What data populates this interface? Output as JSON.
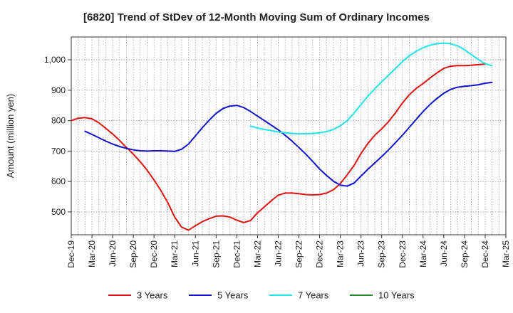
{
  "title": "[6820]  Trend of StDev of 12-Month Moving Sum of Ordinary Incomes",
  "chart_data": {
    "type": "line",
    "title": "[6820]  Trend of StDev of 12-Month Moving Sum of Ordinary Incomes",
    "xlabel": "",
    "ylabel": "Amount (million yen)",
    "ylim": [
      425,
      1075
    ],
    "yticks": [
      500,
      600,
      700,
      800,
      900,
      1000
    ],
    "ytick_labels": [
      "500",
      "600",
      "700",
      "800",
      "900",
      "1,000"
    ],
    "xlim": [
      "2019-12",
      "2025-03"
    ],
    "xtick_labels": [
      "Dec-19",
      "Mar-20",
      "Jun-20",
      "Sep-20",
      "Dec-20",
      "Mar-21",
      "Jun-21",
      "Sep-21",
      "Dec-21",
      "Mar-22",
      "Jun-22",
      "Sep-22",
      "Dec-22",
      "Mar-23",
      "Jun-23",
      "Sep-23",
      "Dec-23",
      "Mar-24",
      "Jun-24",
      "Sep-24",
      "Dec-24",
      "Mar-25"
    ],
    "grid": true,
    "legend_position": "bottom",
    "series": [
      {
        "name": "3 Years",
        "color": "#dd1111",
        "points": [
          [
            "2019-12",
            800
          ],
          [
            "2020-01",
            808
          ],
          [
            "2020-02",
            810
          ],
          [
            "2020-03",
            806
          ],
          [
            "2020-04",
            793
          ],
          [
            "2020-05",
            775
          ],
          [
            "2020-06",
            756
          ],
          [
            "2020-07",
            735
          ],
          [
            "2020-08",
            712
          ],
          [
            "2020-09",
            690
          ],
          [
            "2020-10",
            665
          ],
          [
            "2020-11",
            637
          ],
          [
            "2020-12",
            605
          ],
          [
            "2021-01",
            570
          ],
          [
            "2021-02",
            530
          ],
          [
            "2021-03",
            483
          ],
          [
            "2021-04",
            450
          ],
          [
            "2021-05",
            440
          ],
          [
            "2021-06",
            455
          ],
          [
            "2021-07",
            468
          ],
          [
            "2021-08",
            478
          ],
          [
            "2021-09",
            486
          ],
          [
            "2021-10",
            487
          ],
          [
            "2021-11",
            483
          ],
          [
            "2021-12",
            473
          ],
          [
            "2022-01",
            465
          ],
          [
            "2022-02",
            472
          ],
          [
            "2022-03",
            497
          ],
          [
            "2022-04",
            517
          ],
          [
            "2022-05",
            537
          ],
          [
            "2022-06",
            555
          ],
          [
            "2022-07",
            562
          ],
          [
            "2022-08",
            562
          ],
          [
            "2022-09",
            560
          ],
          [
            "2022-10",
            557
          ],
          [
            "2022-11",
            556
          ],
          [
            "2022-12",
            557
          ],
          [
            "2023-01",
            562
          ],
          [
            "2023-02",
            573
          ],
          [
            "2023-03",
            593
          ],
          [
            "2023-04",
            622
          ],
          [
            "2023-05",
            653
          ],
          [
            "2023-06",
            692
          ],
          [
            "2023-07",
            725
          ],
          [
            "2023-08",
            752
          ],
          [
            "2023-09",
            773
          ],
          [
            "2023-10",
            797
          ],
          [
            "2023-11",
            826
          ],
          [
            "2023-12",
            858
          ],
          [
            "2024-01",
            885
          ],
          [
            "2024-02",
            906
          ],
          [
            "2024-03",
            922
          ],
          [
            "2024-04",
            940
          ],
          [
            "2024-05",
            957
          ],
          [
            "2024-06",
            972
          ],
          [
            "2024-07",
            979
          ],
          [
            "2024-08",
            981
          ],
          [
            "2024-09",
            981
          ],
          [
            "2024-10",
            982
          ],
          [
            "2024-11",
            984
          ],
          [
            "2024-12",
            986
          ]
        ]
      },
      {
        "name": "5 Years",
        "color": "#1111cc",
        "points": [
          [
            "2020-02",
            765
          ],
          [
            "2020-03",
            755
          ],
          [
            "2020-04",
            744
          ],
          [
            "2020-05",
            733
          ],
          [
            "2020-06",
            723
          ],
          [
            "2020-07",
            715
          ],
          [
            "2020-08",
            709
          ],
          [
            "2020-09",
            704
          ],
          [
            "2020-10",
            701
          ],
          [
            "2020-11",
            700
          ],
          [
            "2020-12",
            701
          ],
          [
            "2021-01",
            701
          ],
          [
            "2021-02",
            700
          ],
          [
            "2021-03",
            699
          ],
          [
            "2021-04",
            706
          ],
          [
            "2021-05",
            723
          ],
          [
            "2021-06",
            750
          ],
          [
            "2021-07",
            777
          ],
          [
            "2021-08",
            802
          ],
          [
            "2021-09",
            824
          ],
          [
            "2021-10",
            840
          ],
          [
            "2021-11",
            848
          ],
          [
            "2021-12",
            850
          ],
          [
            "2022-01",
            843
          ],
          [
            "2022-02",
            830
          ],
          [
            "2022-03",
            815
          ],
          [
            "2022-04",
            800
          ],
          [
            "2022-05",
            785
          ],
          [
            "2022-06",
            770
          ],
          [
            "2022-07",
            752
          ],
          [
            "2022-08",
            733
          ],
          [
            "2022-09",
            712
          ],
          [
            "2022-10",
            690
          ],
          [
            "2022-11",
            666
          ],
          [
            "2022-12",
            641
          ],
          [
            "2023-01",
            620
          ],
          [
            "2023-02",
            601
          ],
          [
            "2023-03",
            588
          ],
          [
            "2023-04",
            585
          ],
          [
            "2023-05",
            595
          ],
          [
            "2023-06",
            618
          ],
          [
            "2023-07",
            640
          ],
          [
            "2023-08",
            661
          ],
          [
            "2023-09",
            682
          ],
          [
            "2023-10",
            704
          ],
          [
            "2023-11",
            728
          ],
          [
            "2023-12",
            752
          ],
          [
            "2024-01",
            778
          ],
          [
            "2024-02",
            804
          ],
          [
            "2024-03",
            830
          ],
          [
            "2024-04",
            853
          ],
          [
            "2024-05",
            873
          ],
          [
            "2024-06",
            890
          ],
          [
            "2024-07",
            903
          ],
          [
            "2024-08",
            910
          ],
          [
            "2024-09",
            913
          ],
          [
            "2024-10",
            915
          ],
          [
            "2024-11",
            918
          ],
          [
            "2024-12",
            923
          ],
          [
            "2025-01",
            926
          ]
        ]
      },
      {
        "name": "7 Years",
        "color": "#22e4e4",
        "points": [
          [
            "2022-02",
            782
          ],
          [
            "2022-03",
            776
          ],
          [
            "2022-04",
            771
          ],
          [
            "2022-05",
            767
          ],
          [
            "2022-06",
            763
          ],
          [
            "2022-07",
            760
          ],
          [
            "2022-08",
            758
          ],
          [
            "2022-09",
            757
          ],
          [
            "2022-10",
            757
          ],
          [
            "2022-11",
            758
          ],
          [
            "2022-12",
            760
          ],
          [
            "2023-01",
            764
          ],
          [
            "2023-02",
            771
          ],
          [
            "2023-03",
            783
          ],
          [
            "2023-04",
            800
          ],
          [
            "2023-05",
            825
          ],
          [
            "2023-06",
            853
          ],
          [
            "2023-07",
            880
          ],
          [
            "2023-08",
            905
          ],
          [
            "2023-09",
            928
          ],
          [
            "2023-10",
            950
          ],
          [
            "2023-11",
            972
          ],
          [
            "2023-12",
            994
          ],
          [
            "2024-01",
            1013
          ],
          [
            "2024-02",
            1028
          ],
          [
            "2024-03",
            1040
          ],
          [
            "2024-04",
            1048
          ],
          [
            "2024-05",
            1053
          ],
          [
            "2024-06",
            1055
          ],
          [
            "2024-07",
            1053
          ],
          [
            "2024-08",
            1046
          ],
          [
            "2024-09",
            1033
          ],
          [
            "2024-10",
            1017
          ],
          [
            "2024-11",
            1001
          ],
          [
            "2024-12",
            987
          ],
          [
            "2025-01",
            980
          ]
        ]
      },
      {
        "name": "10 Years",
        "color": "#228822",
        "points": []
      }
    ]
  }
}
